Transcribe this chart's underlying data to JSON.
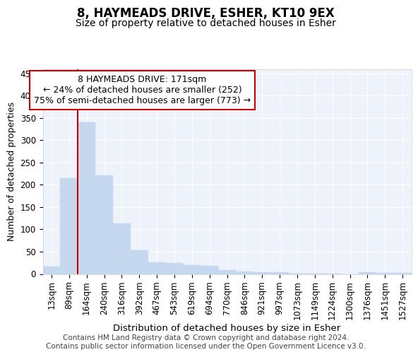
{
  "title": "8, HAYMEADS DRIVE, ESHER, KT10 9EX",
  "subtitle": "Size of property relative to detached houses in Esher",
  "xlabel": "Distribution of detached houses by size in Esher",
  "ylabel": "Number of detached properties",
  "categories": [
    "13sqm",
    "89sqm",
    "164sqm",
    "240sqm",
    "316sqm",
    "392sqm",
    "467sqm",
    "543sqm",
    "619sqm",
    "694sqm",
    "770sqm",
    "846sqm",
    "921sqm",
    "997sqm",
    "1073sqm",
    "1149sqm",
    "1224sqm",
    "1300sqm",
    "1376sqm",
    "1451sqm",
    "1527sqm"
  ],
  "values": [
    17,
    215,
    340,
    222,
    113,
    53,
    26,
    25,
    20,
    19,
    8,
    6,
    4,
    4,
    1,
    1,
    1,
    0,
    4,
    3,
    3
  ],
  "bar_color": "#c5d8f0",
  "bar_edge_color": "#c5d8f0",
  "vline_color": "#cc0000",
  "vline_x_idx": 1.5,
  "annotation_text": "8 HAYMEADS DRIVE: 171sqm\n← 24% of detached houses are smaller (252)\n75% of semi-detached houses are larger (773) →",
  "annotation_box_facecolor": "#ffffff",
  "annotation_box_edgecolor": "#cc0000",
  "background_color": "#eef2fb",
  "grid_color": "#ffffff",
  "ylim": [
    0,
    460
  ],
  "yticks": [
    0,
    50,
    100,
    150,
    200,
    250,
    300,
    350,
    400,
    450
  ],
  "footer_text": "Contains HM Land Registry data © Crown copyright and database right 2024.\nContains public sector information licensed under the Open Government Licence v3.0.",
  "title_fontsize": 12,
  "subtitle_fontsize": 10,
  "xlabel_fontsize": 9.5,
  "ylabel_fontsize": 9,
  "tick_fontsize": 8.5,
  "annotation_fontsize": 9,
  "footer_fontsize": 7.5
}
